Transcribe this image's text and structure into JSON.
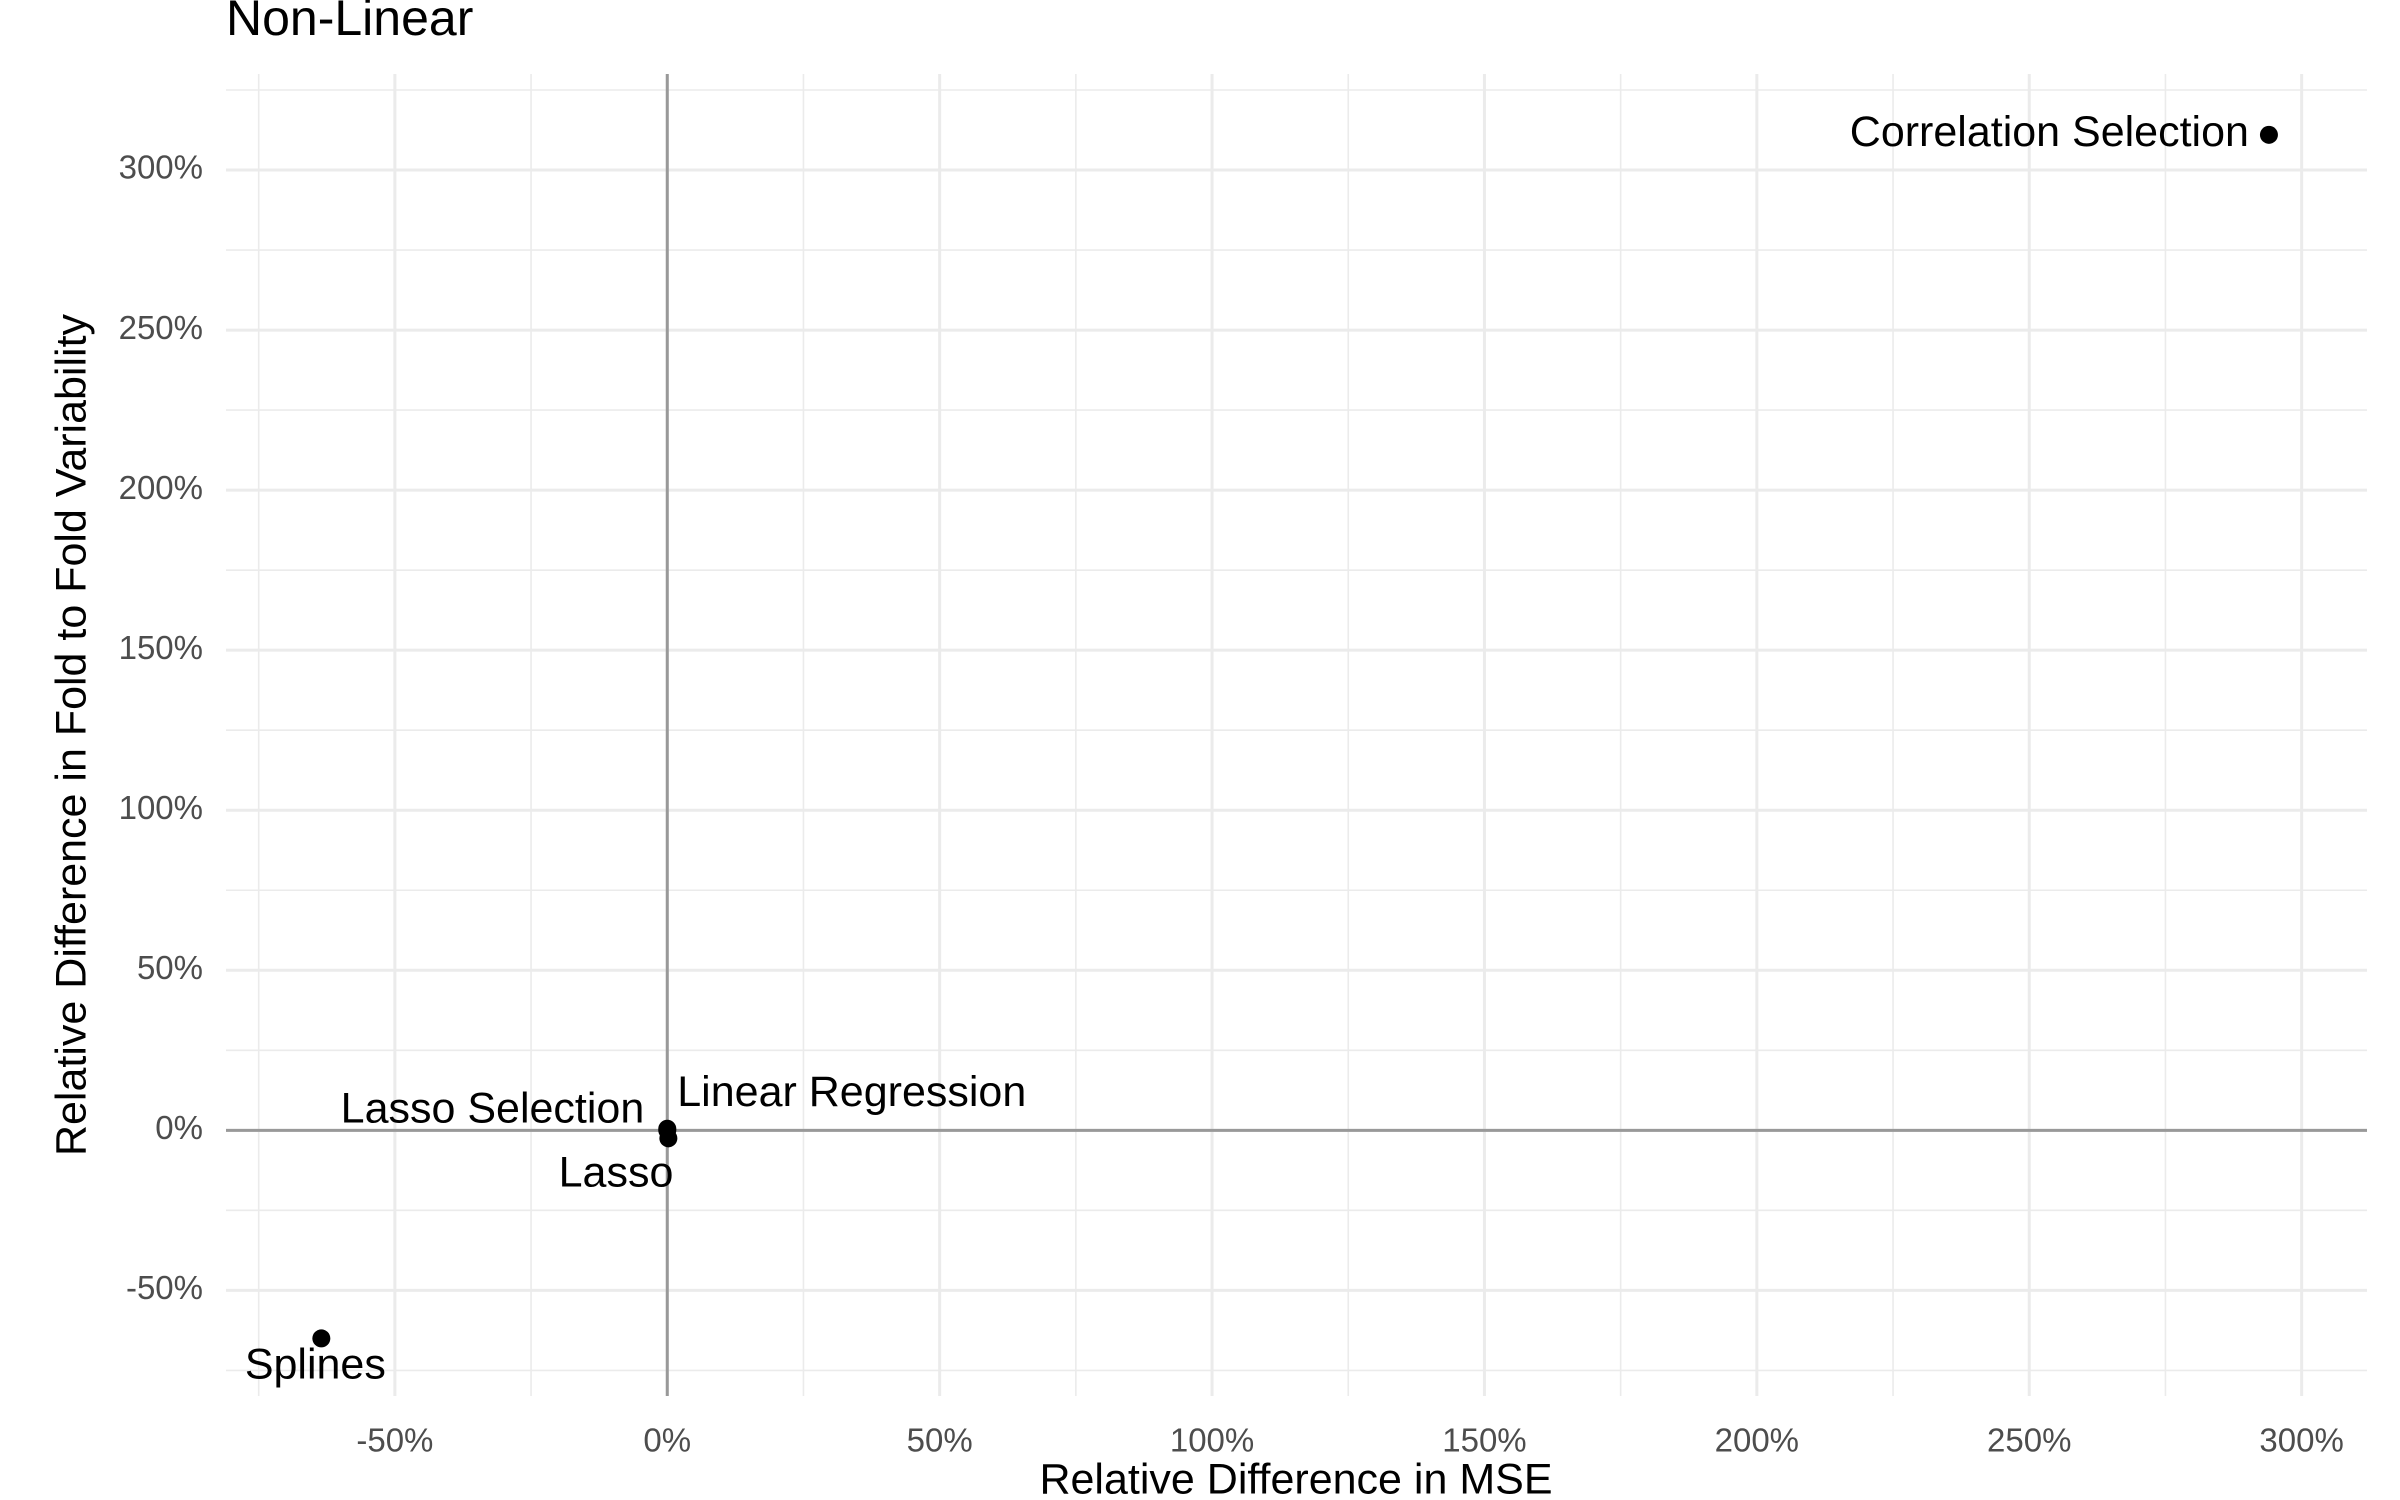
{
  "chart_data": {
    "type": "scatter",
    "title": "Non-Linear",
    "x_label": "Relative Difference in MSE",
    "y_label": "Relative Difference in Fold to Fold Variability",
    "labels": [
      "Correlation Selection",
      "Linear Regression",
      "Lasso Selection",
      "Lasso",
      "Splines"
    ],
    "x": [
      294,
      0,
      0,
      0.2,
      -63.5
    ],
    "values": [
      311,
      0.5,
      0,
      -2.5,
      -65
    ],
    "color": "#000000",
    "xlim": [
      -81,
      312
    ],
    "ylim": [
      -83,
      330
    ],
    "xticks": [
      {
        "value": -50,
        "label": "-50%"
      },
      {
        "value": 0,
        "label": "0%"
      },
      {
        "value": 50,
        "label": "50%"
      },
      {
        "value": 100,
        "label": "100%"
      },
      {
        "value": 150,
        "label": "150%"
      },
      {
        "value": 200,
        "label": "200%"
      },
      {
        "value": 250,
        "label": "250%"
      },
      {
        "value": 300,
        "label": "300%"
      }
    ],
    "yticks": [
      {
        "value": -50,
        "label": "-50%"
      },
      {
        "value": 0,
        "label": "0%"
      },
      {
        "value": 50,
        "label": "50%"
      },
      {
        "value": 100,
        "label": "100%"
      },
      {
        "value": 150,
        "label": "150%"
      },
      {
        "value": 200,
        "label": "200%"
      },
      {
        "value": 250,
        "label": "250%"
      },
      {
        "value": 300,
        "label": "300%"
      }
    ],
    "grid": true,
    "zero_lines": true
  }
}
